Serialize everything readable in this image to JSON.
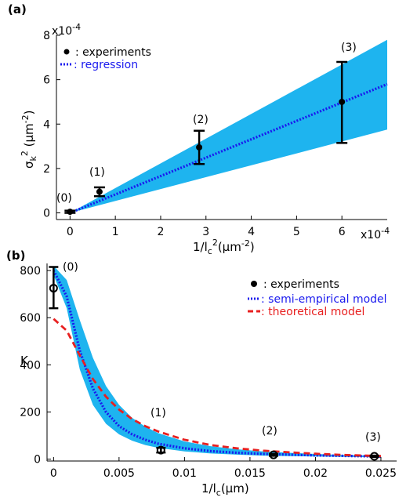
{
  "chart_data": [
    {
      "panel": "(a)",
      "type": "scatter",
      "xlabel": "1/l_c^2(µm^-2)",
      "ylabel": "σ_k^2 (µm^-2)",
      "x_multiplier": "x10^-4",
      "y_multiplier": "x10^-4",
      "xlim": [
        -0.3,
        7
      ],
      "ylim": [
        -0.3,
        8
      ],
      "xticks": [
        0,
        1,
        2,
        3,
        4,
        5,
        6
      ],
      "yticks": [
        0,
        2,
        4,
        6,
        8
      ],
      "legend_position": "top-left",
      "series": [
        {
          "name": "experiments",
          "kind": "points-with-errorbars",
          "color": "#000000",
          "points": [
            {
              "x": 0.0,
              "y": 0.05,
              "low": 0.0,
              "high": 0.1,
              "label": "(0)"
            },
            {
              "x": 0.65,
              "y": 0.95,
              "low": 0.75,
              "high": 1.15,
              "label": "(1)"
            },
            {
              "x": 2.85,
              "y": 2.95,
              "low": 2.2,
              "high": 3.7,
              "label": "(2)"
            },
            {
              "x": 6.0,
              "y": 5.0,
              "low": 3.15,
              "high": 6.8,
              "label": "(3)"
            }
          ]
        },
        {
          "name": "regression",
          "kind": "dotted-line",
          "color": "#1a1aee",
          "x": [
            0,
            7
          ],
          "y": [
            0,
            5.8
          ]
        },
        {
          "kind": "band",
          "color": "#1eb4ef",
          "x": [
            0,
            7
          ],
          "upper": [
            0,
            7.8
          ],
          "lower": [
            0,
            3.75
          ]
        }
      ]
    },
    {
      "panel": "(b)",
      "type": "line",
      "xlabel": "1/l_c(µm)",
      "ylabel": "K",
      "xlim": [
        -0.0005,
        0.0262
      ],
      "ylim": [
        -8,
        830
      ],
      "xticks": [
        0,
        0.005,
        0.01,
        0.015,
        0.02,
        0.025
      ],
      "xtick_labels": [
        "0",
        "0.005",
        "0.01",
        "0.015",
        "0.02",
        "0.025"
      ],
      "yticks": [
        0,
        200,
        400,
        600,
        800
      ],
      "legend_position": "top-right",
      "series": [
        {
          "name": "experiments",
          "kind": "points-with-errorbars",
          "color": "#000000",
          "points": [
            {
              "x": 0.0,
              "y": 725,
              "low": 640,
              "high": 815,
              "label": "(0)"
            },
            {
              "x": 0.0082,
              "y": 38,
              "low": 28,
              "high": 48,
              "label": "(1)"
            },
            {
              "x": 0.0168,
              "y": 18,
              "low": 14,
              "high": 22,
              "label": "(2)"
            },
            {
              "x": 0.0245,
              "y": 12,
              "low": 9,
              "high": 15,
              "label": "(3)"
            }
          ]
        },
        {
          "name": "semi-empirical model",
          "kind": "dotted-line",
          "color": "#1a1aee",
          "x": [
            0,
            0.001,
            0.002,
            0.003,
            0.004,
            0.005,
            0.006,
            0.007,
            0.008,
            0.01,
            0.012,
            0.014,
            0.016,
            0.018,
            0.02,
            0.022,
            0.025
          ],
          "y": [
            800,
            690,
            460,
            300,
            200,
            140,
            105,
            82,
            65,
            46,
            34,
            27,
            22,
            19,
            16,
            14,
            11
          ]
        },
        {
          "name": "theoretical model",
          "kind": "dashed-line",
          "color": "#e82020",
          "x": [
            0,
            0.001,
            0.002,
            0.003,
            0.004,
            0.005,
            0.006,
            0.007,
            0.008,
            0.01,
            0.012,
            0.014,
            0.016,
            0.018,
            0.02,
            0.022,
            0.025
          ],
          "y": [
            595,
            545,
            440,
            340,
            265,
            210,
            170,
            140,
            117,
            82,
            60,
            46,
            36,
            29,
            23,
            18,
            13
          ]
        },
        {
          "kind": "band",
          "color": "#1eb4ef",
          "x": [
            0,
            0.001,
            0.002,
            0.003,
            0.004,
            0.005,
            0.006,
            0.007,
            0.008,
            0.01,
            0.012,
            0.014,
            0.016,
            0.018,
            0.02,
            0.022,
            0.025
          ],
          "upper": [
            820,
            760,
            590,
            430,
            310,
            230,
            175,
            138,
            110,
            75,
            55,
            42,
            33,
            27,
            22,
            18,
            14
          ],
          "lower": [
            780,
            640,
            380,
            230,
            150,
            105,
            78,
            60,
            48,
            33,
            24,
            19,
            15,
            13,
            11,
            10,
            8
          ]
        }
      ]
    }
  ]
}
